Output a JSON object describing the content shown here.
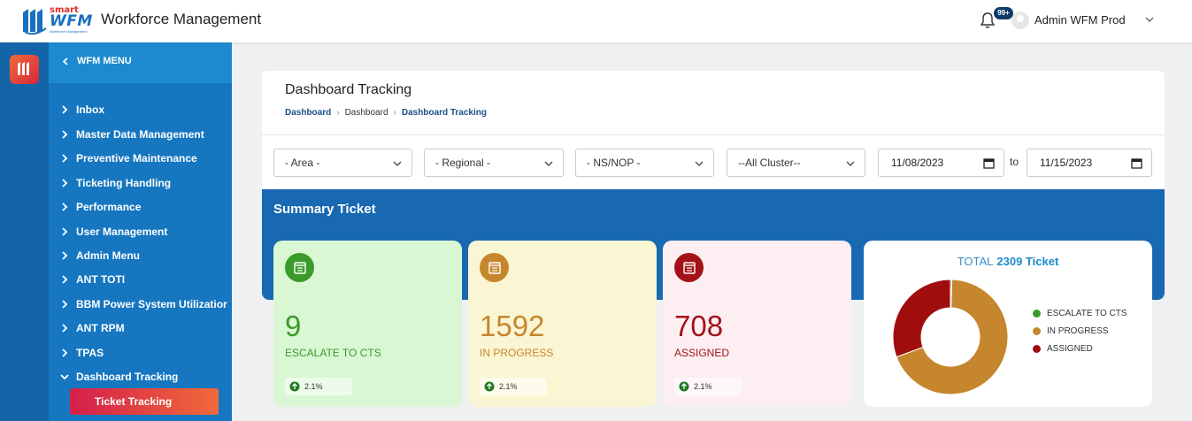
{
  "header": {
    "logo_smart": "smart",
    "logo_wfm": "WFM",
    "logo_sub": "Workforce Management",
    "app_title": "Workforce Management",
    "notifications_badge": "99+",
    "user_name": "Admin WFM Prod"
  },
  "sidebar": {
    "header": "WFM MENU",
    "items": [
      {
        "label": "Inbox"
      },
      {
        "label": "Master Data Management"
      },
      {
        "label": "Preventive Maintenance"
      },
      {
        "label": "Ticketing Handling"
      },
      {
        "label": "Performance"
      },
      {
        "label": "User Management"
      },
      {
        "label": "Admin Menu"
      },
      {
        "label": "ANT TOTI"
      },
      {
        "label": "BBM Power System Utilizatior"
      },
      {
        "label": "ANT RPM"
      },
      {
        "label": "TPAS"
      },
      {
        "label": "Dashboard Tracking"
      }
    ],
    "active_subitem": "Ticket Tracking"
  },
  "page": {
    "title": "Dashboard Tracking",
    "breadcrumb": [
      "Dashboard",
      "Dashboard",
      "Dashboard Tracking"
    ]
  },
  "filters": {
    "area": "- Area -",
    "regional": "- Regional -",
    "ns_nop": "- NS/NOP -",
    "cluster": "--All Cluster--",
    "date_from": "11/08/2023",
    "to_label": "to",
    "date_to": "11/15/2023"
  },
  "summary": {
    "title": "Summary Ticket",
    "cards": [
      {
        "value": "9",
        "label": "ESCALATE TO CTS",
        "pct": "2.1%",
        "color": "#3a9a2a"
      },
      {
        "value": "1592",
        "label": "IN PROGRESS",
        "pct": "2.1%",
        "color": "#c6862e"
      },
      {
        "value": "708",
        "label": "ASSIGNED",
        "pct": "2.1%",
        "color": "#a31217"
      }
    ],
    "total_label": "TOTAL",
    "total_value": "2309 Ticket"
  },
  "chart_data": {
    "type": "pie",
    "categories": [
      "ESCALATE TO CTS",
      "IN PROGRESS",
      "ASSIGNED"
    ],
    "values": [
      9,
      1592,
      708
    ],
    "colors": [
      "#3a9a2a",
      "#c6862e",
      "#a00d0d"
    ],
    "title": "TOTAL 2309 Ticket",
    "legend_position": "right"
  }
}
